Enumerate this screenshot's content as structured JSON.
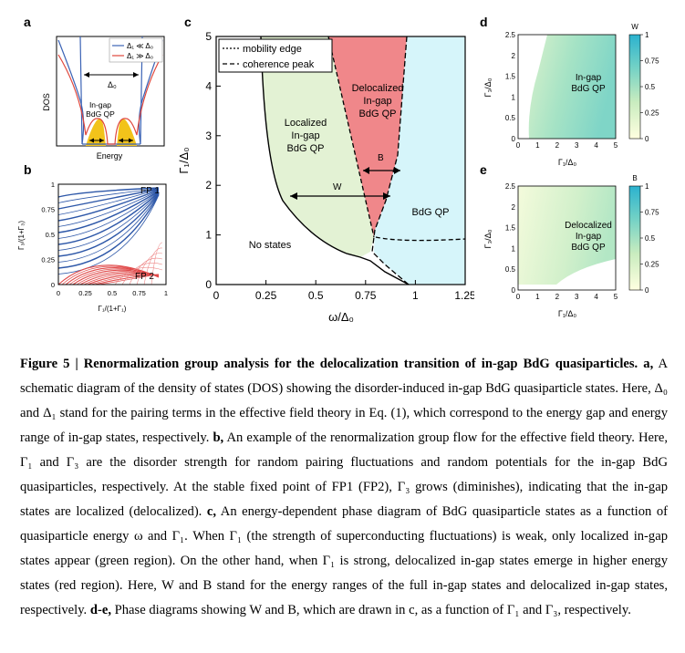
{
  "panels": {
    "a": {
      "letter": "a",
      "legend": [
        "Δ₁ ≪ Δ₀",
        "Δ₁ ≫ Δ₀"
      ],
      "delta0_label": "Δ₀",
      "ingap_label_1": "In-gap",
      "ingap_label_2": "BdG QP",
      "xlabel": "Energy",
      "ylabel": "DOS",
      "colors": {
        "blue": "#3b63b5",
        "red": "#e0463b",
        "fill": "#f2c31a"
      }
    },
    "b": {
      "letter": "b",
      "fp1": "FP 1",
      "fp2": "FP 2",
      "xticks": [
        "0",
        "0.25",
        "0.5",
        "0.75",
        "1"
      ],
      "yticks": [
        "0",
        "0.25",
        "0.5",
        "0.75",
        "1"
      ],
      "xlabel": "Γ₁/(1+Γ₁)",
      "ylabel": "Γ₃/(1+Γ₃)"
    },
    "c": {
      "letter": "c",
      "legend": [
        "mobility edge",
        "coherence peak"
      ],
      "xticks": [
        "0",
        "0.25",
        "0.5",
        "0.75",
        "1",
        "1.25"
      ],
      "yticks": [
        "0",
        "1",
        "2",
        "3",
        "4",
        "5"
      ],
      "xlabel": "ω/Δ₀",
      "ylabel": "Γ₁/Δ₀",
      "region_localized": [
        "Localized",
        "In-gap",
        "BdG QP"
      ],
      "region_delocalized": [
        "Delocalized",
        "In-gap",
        "BdG QP"
      ],
      "region_bdg": "BdG QP",
      "region_nostates": "No states",
      "w_label": "W",
      "b_label": "B",
      "colors": {
        "green": "#e3f2d4",
        "red": "#f0878a",
        "cyan": "#d6f5fa"
      }
    },
    "d": {
      "letter": "d",
      "label": [
        "In-gap",
        "BdG QP"
      ],
      "xticks": [
        "0",
        "1",
        "2",
        "3",
        "4",
        "5"
      ],
      "yticks": [
        "0",
        "0.5",
        "1",
        "1.5",
        "2",
        "2.5"
      ],
      "xlabel": "Γ₁/Δ₀",
      "ylabel": "Γ₃/Δ₀",
      "cbar_title": "W",
      "cbar_ticks": [
        "0",
        "0.25",
        "0.5",
        "0.75",
        "1"
      ]
    },
    "e": {
      "letter": "e",
      "label": [
        "Delocalized",
        "In-gap",
        "BdG QP"
      ],
      "xticks": [
        "0",
        "1",
        "2",
        "3",
        "4",
        "5"
      ],
      "yticks": [
        "0",
        "0.5",
        "1",
        "1.5",
        "2",
        "2.5"
      ],
      "xlabel": "Γ₁/Δ₀",
      "ylabel": "Γ₃/Δ₀",
      "cbar_title": "B",
      "cbar_ticks": [
        "0",
        "0.25",
        "0.5",
        "0.75",
        "1"
      ]
    }
  },
  "caption": {
    "title": "Figure 5 | Renormalization group analysis for the delocalization transition of in-gap BdG quasiparticles.",
    "p_a_label": "a,",
    "p_a": "A schematic diagram of the density of states (DOS) showing the disorder-induced in-gap BdG quasiparticle states. Here, Δ₀ and Δ₁ stand for the pairing terms in the effective field theory in Eq. (1), which correspond to the energy gap and energy range of in-gap states, respectively.",
    "p_b_label": "b,",
    "p_b": "An example of the renormalization group flow for the effective field theory. Here, Γ₁ and Γ₃ are the disorder strength for random pairing fluctuations and random potentials for the in-gap BdG quasiparticles, respectively. At the stable fixed point of FP1 (FP2), Γ₃ grows (diminishes), indicating that the in-gap states are localized (delocalized).",
    "p_c_label": "c,",
    "p_c": "An energy-dependent phase diagram of BdG quasiparticle states as a function of quasiparticle energy ω and Γ₁. When Γ₁ (the strength of superconducting fluctuations) is weak, only localized in-gap states appear (green region). On the other hand, when Γ₁ is strong, delocalized in-gap states emerge in higher energy states (red region). Here, W and B stand for the energy ranges of the full in-gap states and delocalized in-gap states, respectively.",
    "p_de_label": "d-e,",
    "p_de": "Phase diagrams showing W and B, which are drawn in c, as a function of Γ₁ and Γ₃, respectively."
  }
}
